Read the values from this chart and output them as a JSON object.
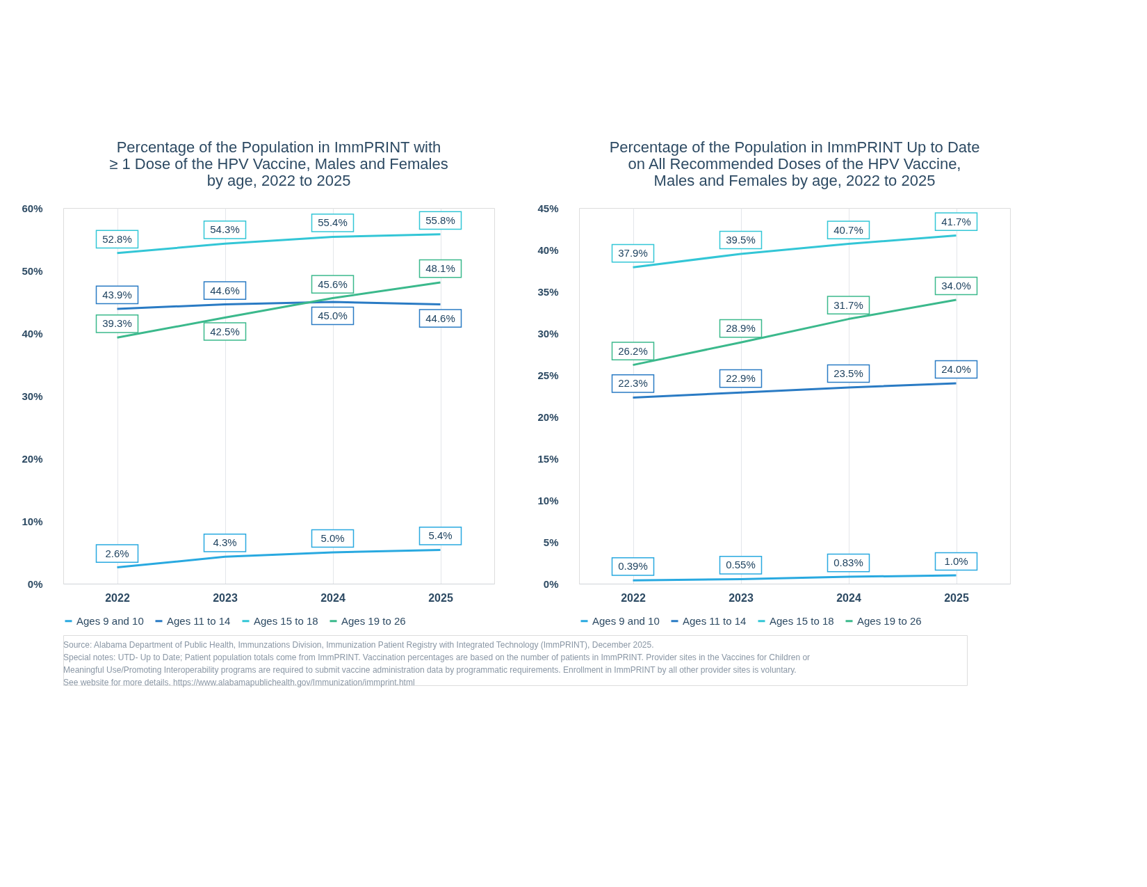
{
  "chart_data": [
    {
      "type": "line",
      "title": "Percentage of the Population in ImmPRINT with\n≥ 1 Dose of the HPV Vaccine, Males and Females\nby age, 2022 to 2025",
      "categories": [
        "2022",
        "2023",
        "2024",
        "2025"
      ],
      "series": [
        {
          "name": "Ages 9 and 10",
          "color": "#29a9e0",
          "values": [
            2.6,
            4.3,
            5.0,
            5.4
          ],
          "value_labels": [
            "2.6%",
            "4.3%",
            "5.0%",
            "5.4%"
          ]
        },
        {
          "name": "Ages 11 to 14",
          "color": "#2a7bc4",
          "values": [
            43.9,
            44.6,
            45.0,
            44.6
          ],
          "value_labels": [
            "43.9%",
            "44.6%",
            "45.0%",
            "44.6%"
          ]
        },
        {
          "name": "Ages 15 to 18",
          "color": "#33c6d6",
          "values": [
            52.8,
            54.3,
            55.4,
            55.8
          ],
          "value_labels": [
            "52.8%",
            "54.3%",
            "55.4%",
            "55.8%"
          ]
        },
        {
          "name": "Ages 19 to 26",
          "color": "#3bb98c",
          "values": [
            39.3,
            42.5,
            45.6,
            48.1
          ],
          "value_labels": [
            "39.3%",
            "42.5%",
            "45.6%",
            "48.1%"
          ]
        }
      ],
      "ylim": [
        0,
        60
      ],
      "yticks": [
        {
          "value": 0,
          "label": "0%"
        },
        {
          "value": 10,
          "label": "10%"
        },
        {
          "value": 20,
          "label": "20%"
        },
        {
          "value": 30,
          "label": "30%"
        },
        {
          "value": 40,
          "label": "40%"
        },
        {
          "value": 50,
          "label": "50%"
        },
        {
          "value": 60,
          "label": "60%"
        }
      ],
      "grid": "x",
      "legend": "bottom",
      "marker": "none",
      "line_style": "solid"
    },
    {
      "type": "line",
      "title": "Percentage of the Population in ImmPRINT Up to Date\non All Recommended Doses of the HPV Vaccine,\nMales and Females by age, 2022 to 2025",
      "categories": [
        "2022",
        "2023",
        "2024",
        "2025"
      ],
      "series": [
        {
          "name": "Ages 9 and 10",
          "color": "#29a9e0",
          "values": [
            0.39,
            0.55,
            0.83,
            1.0
          ],
          "value_labels": [
            "0.39%",
            "0.55%",
            "0.83%",
            "1.0%"
          ]
        },
        {
          "name": "Ages 11 to 14",
          "color": "#2a7bc4",
          "values": [
            22.3,
            22.9,
            23.5,
            24.0
          ],
          "value_labels": [
            "22.3%",
            "22.9%",
            "23.5%",
            "24.0%"
          ]
        },
        {
          "name": "Ages 15 to 18",
          "color": "#33c6d6",
          "values": [
            37.9,
            39.5,
            40.7,
            41.7
          ],
          "value_labels": [
            "37.9%",
            "39.5%",
            "40.7%",
            "41.7%"
          ]
        },
        {
          "name": "Ages 19 to 26",
          "color": "#3bb98c",
          "values": [
            26.2,
            28.9,
            31.7,
            34.0
          ],
          "value_labels": [
            "26.2%",
            "28.9%",
            "31.7%",
            "34.0%"
          ]
        }
      ],
      "ylim": [
        0,
        45
      ],
      "yticks": [
        {
          "value": 0,
          "label": "0%"
        },
        {
          "value": 5,
          "label": "5%"
        },
        {
          "value": 10,
          "label": "10%"
        },
        {
          "value": 15,
          "label": "15%"
        },
        {
          "value": 20,
          "label": "20%"
        },
        {
          "value": 25,
          "label": "25%"
        },
        {
          "value": 30,
          "label": "30%"
        },
        {
          "value": 35,
          "label": "35%"
        },
        {
          "value": 40,
          "label": "40%"
        },
        {
          "value": 45,
          "label": "45%"
        }
      ],
      "grid": "x",
      "legend": "bottom",
      "marker": "none",
      "line_style": "solid",
      "annotations": [
        "Source: Alabama Department of Public Health, Immunzations Division, Immunization Patient Registry with Integrated Technology (ImmPRINT), December 2025.",
        "Special notes: UTD- Up to Date; Patient population totals come from ImmPRINT. Vaccination percentages are based on the number of patients in ImmPRINT. Provider sites in the Vaccines for Children or",
        "Meaningful Use/Promoting Interoperability programs are required to submit vaccine administration data by programmatic requirements. Enrollment in ImmPRINT by all other provider sites is voluntary.",
        "See website for more details. https://www.alabamapublichealth.gov/Immunization/immprint.html"
      ]
    }
  ]
}
